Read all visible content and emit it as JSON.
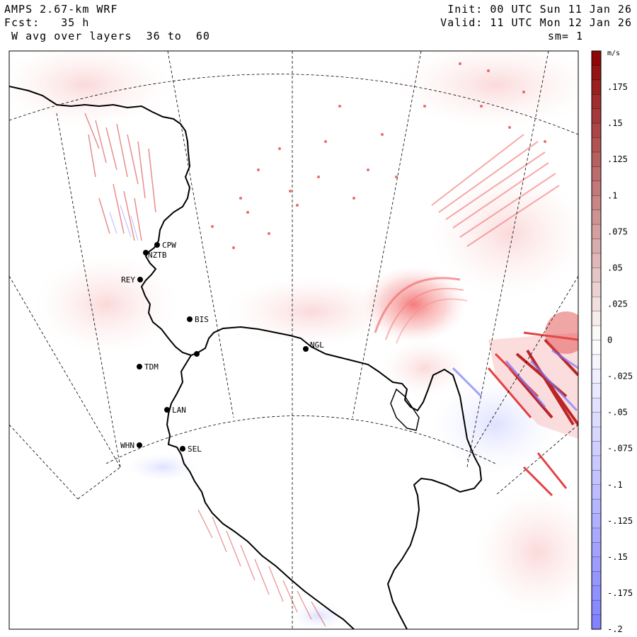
{
  "header": {
    "model": "AMPS 2.67-km WRF",
    "forecast": "Fcst:   35 h",
    "field": " W avg over layers  36 to  60",
    "init": "Init: 00 UTC Sun 11 Jan 26",
    "valid": "Valid: 11 UTC Mon 12 Jan 26",
    "smoothing": "sm= 1"
  },
  "colorbar": {
    "unit": "m/s",
    "tick_labels": [
      ".175",
      ".15",
      ".125",
      ".1",
      ".075",
      ".05",
      ".025",
      "0",
      "-.025",
      "-.05",
      "-.075",
      "-.1",
      "-.125",
      "-.15",
      "-.175",
      "-.2"
    ],
    "tick_values": [
      0.175,
      0.15,
      0.125,
      0.1,
      0.075,
      0.05,
      0.025,
      0,
      -0.025,
      -0.05,
      -0.075,
      -0.1,
      -0.125,
      -0.15,
      -0.175,
      -0.2
    ],
    "range": [
      -0.2,
      0.2
    ],
    "positive_color": "#8b0000",
    "mid_color": "#ffffff",
    "negative_color": "#8080ff"
  },
  "stations": [
    {
      "name": "CPW"
    },
    {
      "name": "NZTB"
    },
    {
      "name": "REY"
    },
    {
      "name": "BIS"
    },
    {
      "name": "TDM"
    },
    {
      "name": "LAN"
    },
    {
      "name": "WHN"
    },
    {
      "name": "SEL"
    },
    {
      "name": "NGL"
    }
  ]
}
